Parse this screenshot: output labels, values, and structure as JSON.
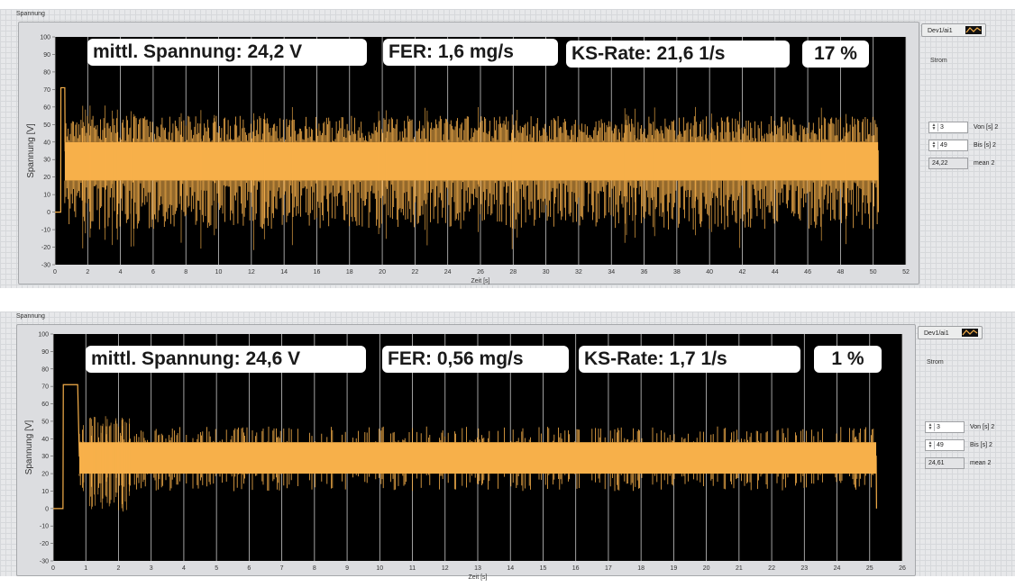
{
  "panels": [
    {
      "title": "Spannung",
      "overlays": {
        "voltage": "mittl. Spannung: 24,2 V",
        "fer": "FER: 1,6 mg/s",
        "ks_rate": "KS-Rate: 21,6 1/s",
        "percent": "17 %"
      },
      "legend": {
        "channel": "Dev1/ai1",
        "strom_label": "Strom"
      },
      "controls": {
        "von_value": "3",
        "von_label": "Von [s] 2",
        "bis_value": "49",
        "bis_label": "Bis [s] 2",
        "mean_value": "24,22",
        "mean_label": "mean 2"
      }
    },
    {
      "title": "Spannung",
      "overlays": {
        "voltage": "mittl. Spannung: 24,6 V",
        "fer": "FER: 0,56 mg/s",
        "ks_rate": "KS-Rate: 1,7 1/s",
        "percent": "1 %"
      },
      "legend": {
        "channel": "Dev1/ai1",
        "strom_label": "Strom"
      },
      "controls": {
        "von_value": "3",
        "von_label": "Von [s] 2",
        "bis_value": "49",
        "bis_label": "Bis [s] 2",
        "mean_value": "24,61",
        "mean_label": "mean 2"
      }
    }
  ],
  "colors": {
    "signal": "#f7b04a",
    "plot_bg": "#000000",
    "grid": "#c8c8c8"
  },
  "chart_data": [
    {
      "type": "line",
      "xlabel": "Zeit [s]",
      "ylabel": "Spannung [V]",
      "xlim": [
        0,
        52
      ],
      "ylim": [
        -30,
        100
      ],
      "xticks": [
        0,
        2,
        4,
        6,
        8,
        10,
        12,
        14,
        16,
        18,
        20,
        22,
        24,
        26,
        28,
        30,
        32,
        34,
        36,
        38,
        40,
        42,
        44,
        46,
        48,
        50,
        52
      ],
      "yticks": [
        100,
        90,
        80,
        70,
        60,
        50,
        40,
        30,
        20,
        10,
        0,
        -10,
        -20,
        -30
      ],
      "grid": true,
      "series": [
        {
          "values_description": "voltage signal, dense oscillation",
          "x": [
            0,
            0.35,
            0.36,
            0.6,
            0.62,
            0.65,
            50.3,
            50.31
          ],
          "y": [
            0,
            0,
            71,
            71,
            35,
            35,
            35,
            0
          ],
          "band_x": [
            0.6,
            50.3
          ],
          "band_core": [
            18,
            40
          ],
          "band_spikes": [
            -10,
            55
          ]
        }
      ]
    },
    {
      "type": "line",
      "xlabel": "Zeit [s]",
      "ylabel": "Spannung [V]",
      "xlim": [
        0,
        26
      ],
      "ylim": [
        -30,
        100
      ],
      "xticks": [
        0,
        1,
        2,
        3,
        4,
        5,
        6,
        7,
        8,
        9,
        10,
        11,
        12,
        13,
        14,
        15,
        16,
        17,
        18,
        19,
        20,
        21,
        22,
        23,
        24,
        25,
        26
      ],
      "yticks": [
        100,
        90,
        80,
        70,
        60,
        50,
        40,
        30,
        20,
        10,
        0,
        -10,
        -20,
        -30
      ],
      "grid": true,
      "series": [
        {
          "x": [
            0,
            0.3,
            0.31,
            0.45,
            0.46,
            0.75,
            0.8,
            25.2,
            25.21
          ],
          "y": [
            0,
            0,
            71,
            71,
            71,
            71,
            30,
            30,
            0
          ],
          "band_x": [
            0.8,
            25.2
          ],
          "band_core": [
            20,
            38
          ],
          "band_spikes": [
            10,
            47
          ]
        }
      ]
    }
  ]
}
